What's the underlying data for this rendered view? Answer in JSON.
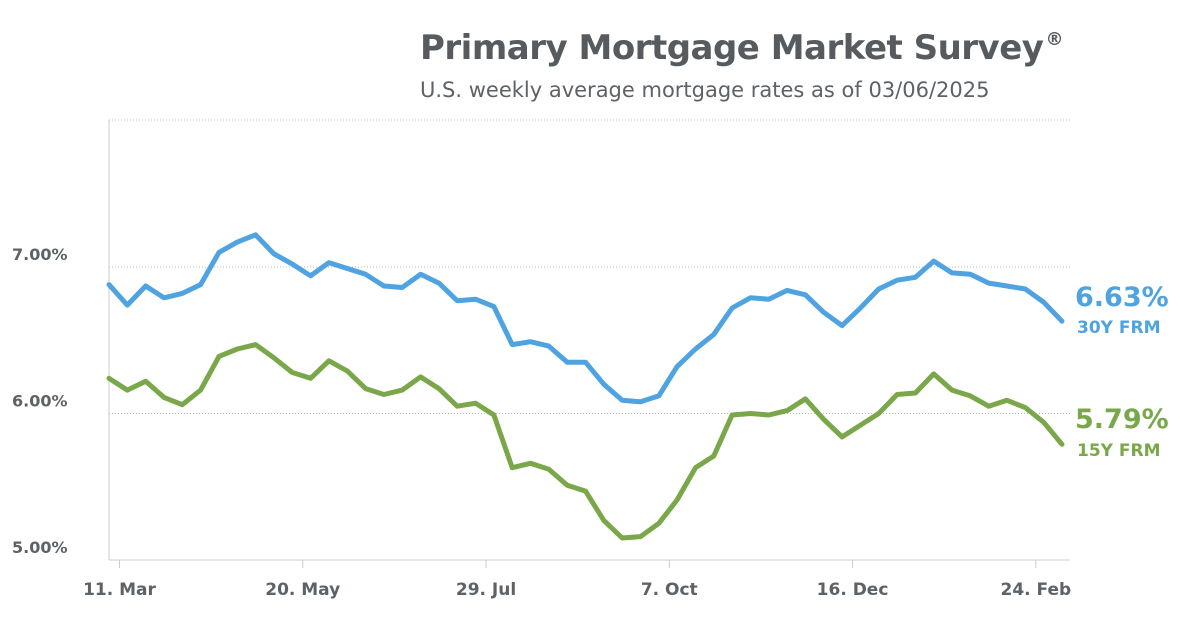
{
  "header": {
    "title": "Primary Mortgage Market Survey",
    "title_mark": "®",
    "subtitle": "U.S. weekly average mortgage rates as of 03/06/2025"
  },
  "chart_data": {
    "type": "line",
    "title": "Primary Mortgage Market Survey®",
    "subtitle": "U.S. weekly average mortgage rates as of 03/06/2025",
    "xlabel": "",
    "ylabel": "",
    "ylim": [
      5.0,
      7.0
    ],
    "y_ticks": [
      "7.00%",
      "6.00%",
      "5.00%"
    ],
    "x_ticks": [
      "11. Mar",
      "20. May",
      "29. Jul",
      "7. Oct",
      "16. Dec",
      "24. Feb"
    ],
    "x": [
      "2024-03-07",
      "2024-03-14",
      "2024-03-21",
      "2024-03-28",
      "2024-04-04",
      "2024-04-11",
      "2024-04-18",
      "2024-04-25",
      "2024-05-02",
      "2024-05-09",
      "2024-05-16",
      "2024-05-23",
      "2024-05-30",
      "2024-06-06",
      "2024-06-13",
      "2024-06-20",
      "2024-06-27",
      "2024-07-03",
      "2024-07-11",
      "2024-07-18",
      "2024-07-25",
      "2024-08-01",
      "2024-08-08",
      "2024-08-15",
      "2024-08-22",
      "2024-08-29",
      "2024-09-05",
      "2024-09-12",
      "2024-09-19",
      "2024-09-26",
      "2024-10-03",
      "2024-10-10",
      "2024-10-17",
      "2024-10-24",
      "2024-10-31",
      "2024-11-07",
      "2024-11-14",
      "2024-11-21",
      "2024-11-27",
      "2024-12-05",
      "2024-12-12",
      "2024-12-19",
      "2024-12-26",
      "2025-01-02",
      "2025-01-09",
      "2025-01-16",
      "2025-01-23",
      "2025-01-30",
      "2025-02-06",
      "2025-02-13",
      "2025-02-20",
      "2025-02-27",
      "2025-03-06"
    ],
    "grid": true,
    "series": [
      {
        "name": "30Y FRM",
        "color": "#4fa3e0",
        "end_value_label": "6.63%",
        "end_series_label": "30Y FRM",
        "values": [
          6.88,
          6.74,
          6.87,
          6.79,
          6.82,
          6.88,
          7.1,
          7.17,
          7.22,
          7.09,
          7.02,
          6.94,
          7.03,
          6.99,
          6.95,
          6.87,
          6.86,
          6.95,
          6.89,
          6.77,
          6.78,
          6.73,
          6.47,
          6.49,
          6.46,
          6.35,
          6.35,
          6.2,
          6.09,
          6.08,
          6.12,
          6.32,
          6.44,
          6.54,
          6.72,
          6.79,
          6.78,
          6.84,
          6.81,
          6.69,
          6.6,
          6.72,
          6.85,
          6.91,
          6.93,
          7.04,
          6.96,
          6.95,
          6.89,
          6.87,
          6.85,
          6.76,
          6.63
        ]
      },
      {
        "name": "15Y FRM",
        "color": "#79a74a",
        "end_value_label": "5.79%",
        "end_series_label": "15Y FRM",
        "values": [
          6.24,
          6.16,
          6.22,
          6.11,
          6.06,
          6.16,
          6.39,
          6.44,
          6.47,
          6.38,
          6.28,
          6.24,
          6.36,
          6.29,
          6.17,
          6.13,
          6.16,
          6.25,
          6.17,
          6.05,
          6.07,
          5.99,
          5.63,
          5.66,
          5.62,
          5.51,
          5.47,
          5.27,
          5.15,
          5.16,
          5.25,
          5.41,
          5.63,
          5.71,
          5.99,
          6.0,
          5.99,
          6.02,
          6.1,
          5.96,
          5.84,
          5.92,
          6.0,
          6.13,
          6.14,
          6.27,
          6.16,
          6.12,
          6.05,
          6.09,
          6.04,
          5.94,
          5.79
        ]
      }
    ]
  }
}
